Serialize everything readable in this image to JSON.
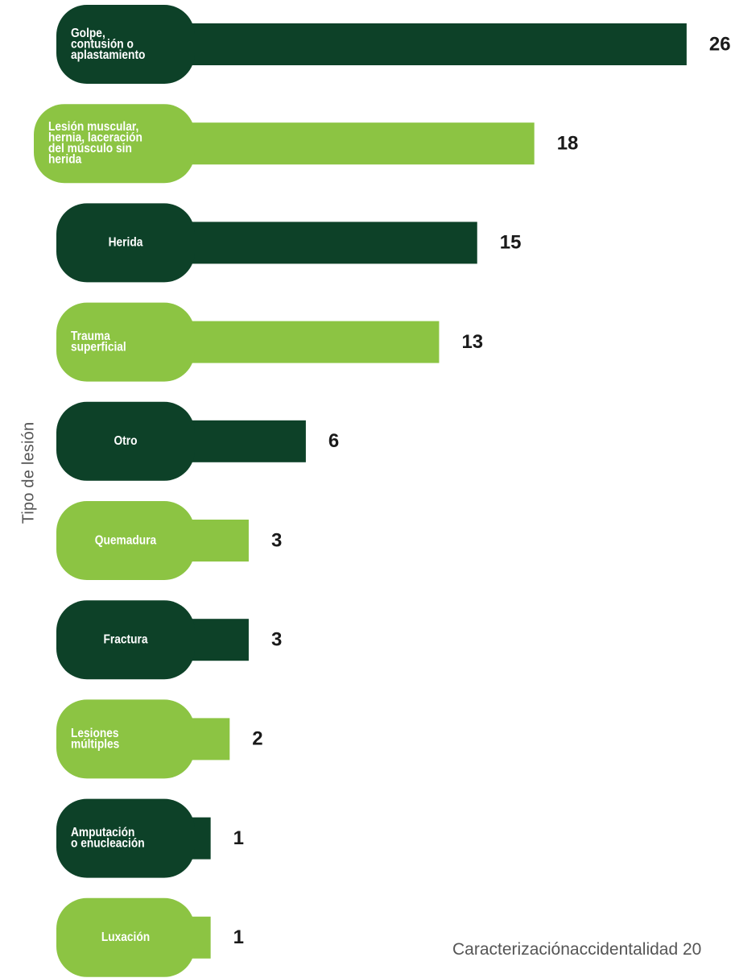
{
  "chart_data": {
    "type": "bar",
    "orientation": "horizontal",
    "ylabel": "Tipo de lesión",
    "categories": [
      "Golpe, contusión o aplastamiento",
      "Lesión muscular, hernia, laceración del músculo sin herida",
      "Herida",
      "Trauma superficial",
      "Otro",
      "Quemadura",
      "Fractura",
      "Lesiones múltiples",
      "Amputación o enucleación",
      "Luxación"
    ],
    "label_lines": [
      [
        "Golpe,",
        "contusión o",
        "aplastamiento"
      ],
      [
        "Lesión muscular,",
        "hernia, laceración",
        "del músculo sin",
        "herida"
      ],
      [
        "Herida"
      ],
      [
        "Trauma",
        "superficial"
      ],
      [
        "Otro"
      ],
      [
        "Quemadura"
      ],
      [
        "Fractura"
      ],
      [
        "Lesiones",
        "múltiples"
      ],
      [
        "Amputación",
        "o enucleación"
      ],
      [
        "Luxación"
      ]
    ],
    "values": [
      26,
      18,
      15,
      13,
      6,
      3,
      3,
      2,
      1,
      1
    ],
    "value_labels": [
      "26",
      "18",
      "15",
      "13",
      "6",
      "3",
      "3",
      "2",
      "1",
      "1"
    ],
    "colors": [
      "#0d4128",
      "#8cc443",
      "#0d4128",
      "#8cc443",
      "#0d4128",
      "#8cc443",
      "#0d4128",
      "#8cc443",
      "#0d4128",
      "#8cc443"
    ],
    "value_color": "#1a1a1a"
  },
  "footnote": "Caracterizaciónaccidentalidad 20"
}
